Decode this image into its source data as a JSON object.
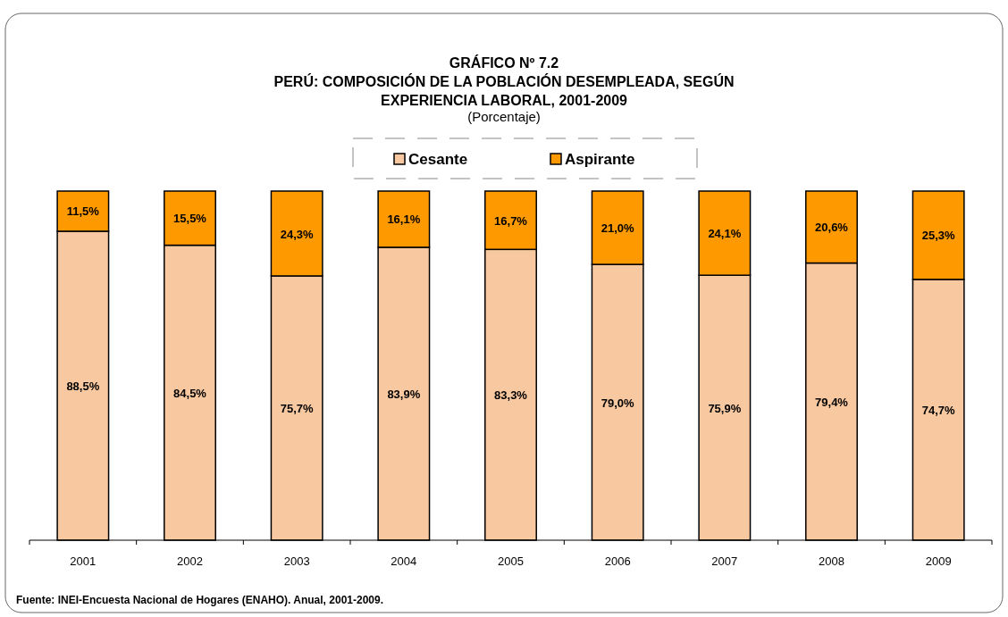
{
  "chart_data": {
    "type": "bar",
    "stacked": true,
    "title": "GRÁFICO Nº 7.2\nPERÚ: COMPOSICIÓN DE LA POBLACIÓN DESEMPLEADA, SEGÚN\nEXPERIENCIA LABORAL, 2001-2009",
    "subtitle": "(Porcentaje)",
    "categories": [
      "2001",
      "2002",
      "2003",
      "2004",
      "2005",
      "2006",
      "2007",
      "2008",
      "2009"
    ],
    "series": [
      {
        "name": "Cesante",
        "color": "#f8c9a0",
        "values": [
          88.5,
          84.5,
          75.7,
          83.9,
          83.3,
          79.0,
          75.9,
          79.4,
          74.7
        ],
        "value_labels": [
          "88,5%",
          "84,5%",
          "75,7%",
          "83,9%",
          "83,3%",
          "79,0%",
          "75,9%",
          "79,4%",
          "74,7%"
        ]
      },
      {
        "name": "Aspirante",
        "color": "#ff9900",
        "values": [
          11.5,
          15.5,
          24.3,
          16.1,
          16.7,
          21.0,
          24.1,
          20.6,
          25.3
        ],
        "value_labels": [
          "11,5%",
          "15,5%",
          "24,3%",
          "16,1%",
          "16,7%",
          "21,0%",
          "24,1%",
          "20,6%",
          "25,3%"
        ]
      }
    ],
    "legend": "top",
    "annotations": [
      "Fuente: INEI-Encuesta Nacional de Hogares (ENAHO). Anual, 2001-2009."
    ]
  }
}
